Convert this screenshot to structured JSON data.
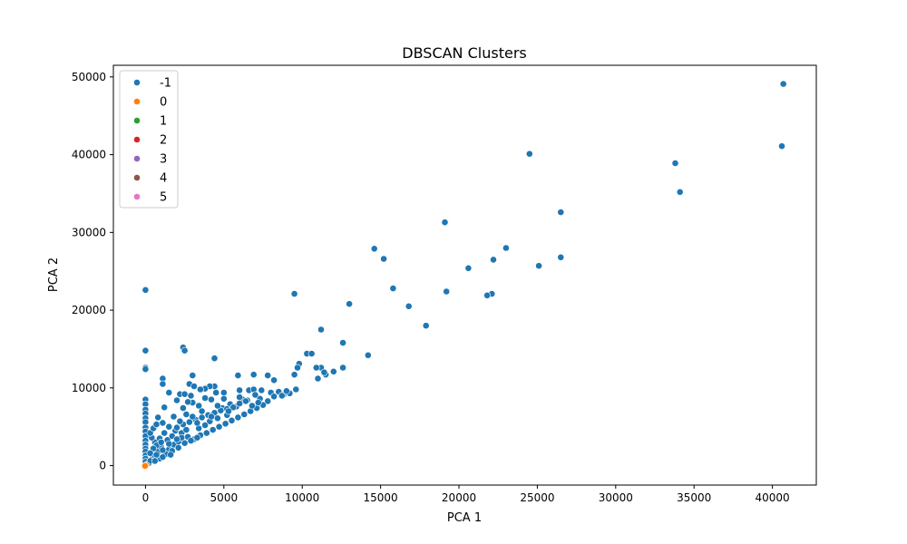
{
  "chart_data": {
    "type": "scatter",
    "title": "DBSCAN Clusters",
    "xlabel": "PCA 1",
    "ylabel": "PCA 2",
    "xlim": [
      -2050,
      42800
    ],
    "ylim": [
      -2500,
      51500
    ],
    "xticks": [
      0,
      5000,
      10000,
      15000,
      20000,
      25000,
      30000,
      35000,
      40000
    ],
    "yticks": [
      0,
      10000,
      20000,
      30000,
      40000,
      50000
    ],
    "grid": false,
    "legend_position": "top-left",
    "series": [
      {
        "name": "-1",
        "color": "#1f77b4",
        "points": [
          [
            40700,
            49100
          ],
          [
            40600,
            41100
          ],
          [
            24500,
            40100
          ],
          [
            33800,
            38900
          ],
          [
            34100,
            35200
          ],
          [
            26500,
            32600
          ],
          [
            19100,
            31300
          ],
          [
            14600,
            27900
          ],
          [
            23000,
            28000
          ],
          [
            15200,
            26600
          ],
          [
            26500,
            26800
          ],
          [
            22200,
            26500
          ],
          [
            25100,
            25700
          ],
          [
            20600,
            25400
          ],
          [
            19200,
            22400
          ],
          [
            22100,
            22100
          ],
          [
            21800,
            21900
          ],
          [
            9500,
            22100
          ],
          [
            13000,
            20800
          ],
          [
            16800,
            20500
          ],
          [
            17900,
            18000
          ],
          [
            11200,
            17500
          ],
          [
            12600,
            15800
          ],
          [
            15800,
            22800
          ],
          [
            0,
            22600
          ],
          [
            0,
            14800
          ],
          [
            2400,
            15200
          ],
          [
            2500,
            14800
          ],
          [
            4400,
            13800
          ],
          [
            14200,
            14200
          ],
          [
            10300,
            14400
          ],
          [
            10600,
            14400
          ],
          [
            12600,
            12600
          ],
          [
            9800,
            13100
          ],
          [
            12000,
            12100
          ],
          [
            11500,
            11700
          ],
          [
            11000,
            11200
          ],
          [
            11200,
            12600
          ],
          [
            9500,
            11700
          ],
          [
            7800,
            11600
          ],
          [
            6900,
            11700
          ],
          [
            5900,
            11600
          ],
          [
            3000,
            11600
          ],
          [
            1100,
            11200
          ],
          [
            0,
            12600
          ],
          [
            0,
            12400
          ],
          [
            8200,
            11000
          ],
          [
            9700,
            12600
          ],
          [
            10900,
            12600
          ],
          [
            11400,
            12000
          ],
          [
            4400,
            10200
          ],
          [
            4100,
            10200
          ],
          [
            3800,
            9900
          ],
          [
            2800,
            10500
          ],
          [
            3100,
            10200
          ],
          [
            1100,
            10500
          ],
          [
            1500,
            9400
          ],
          [
            2200,
            9200
          ],
          [
            2500,
            9200
          ],
          [
            2900,
            9000
          ],
          [
            3500,
            9800
          ],
          [
            4500,
            9400
          ],
          [
            5000,
            9400
          ],
          [
            6000,
            9700
          ],
          [
            6600,
            9700
          ],
          [
            6900,
            9800
          ],
          [
            7400,
            9700
          ],
          [
            8000,
            9400
          ],
          [
            8500,
            9500
          ],
          [
            9600,
            9800
          ],
          [
            9200,
            9300
          ],
          [
            8800,
            9100
          ],
          [
            7800,
            8300
          ],
          [
            7300,
            8600
          ],
          [
            7000,
            9100
          ],
          [
            6500,
            8400
          ],
          [
            6200,
            8500
          ],
          [
            5800,
            7600
          ],
          [
            5400,
            7900
          ],
          [
            4900,
            7400
          ],
          [
            4200,
            8500
          ],
          [
            3800,
            8700
          ],
          [
            3400,
            7700
          ],
          [
            3000,
            8100
          ],
          [
            2700,
            8200
          ],
          [
            2400,
            7400
          ],
          [
            2000,
            8400
          ],
          [
            1200,
            7500
          ],
          [
            800,
            6200
          ],
          [
            0,
            8500
          ],
          [
            0,
            7900
          ],
          [
            0,
            7200
          ],
          [
            0,
            6700
          ],
          [
            0,
            6100
          ],
          [
            0,
            5600
          ],
          [
            0,
            4900
          ],
          [
            0,
            4400
          ],
          [
            0,
            3800
          ],
          [
            0,
            3200
          ],
          [
            0,
            2700
          ],
          [
            0,
            2200
          ],
          [
            0,
            1800
          ],
          [
            0,
            1300
          ],
          [
            0,
            900
          ],
          [
            0,
            500
          ],
          [
            200,
            300
          ],
          [
            400,
            800
          ],
          [
            600,
            1300
          ],
          [
            800,
            1800
          ],
          [
            1000,
            2400
          ],
          [
            600,
            3000
          ],
          [
            400,
            3600
          ],
          [
            300,
            4200
          ],
          [
            500,
            4800
          ],
          [
            700,
            5300
          ],
          [
            1100,
            5500
          ],
          [
            1500,
            5000
          ],
          [
            1900,
            4500
          ],
          [
            2300,
            4200
          ],
          [
            2700,
            3700
          ],
          [
            3100,
            3400
          ],
          [
            3500,
            3900
          ],
          [
            3900,
            4200
          ],
          [
            4300,
            4600
          ],
          [
            4700,
            5000
          ],
          [
            5100,
            5400
          ],
          [
            5500,
            5800
          ],
          [
            5900,
            6200
          ],
          [
            6300,
            6600
          ],
          [
            6700,
            7000
          ],
          [
            7100,
            7400
          ],
          [
            7500,
            7800
          ],
          [
            1500,
            2100
          ],
          [
            1800,
            2700
          ],
          [
            2100,
            3100
          ],
          [
            2500,
            2900
          ],
          [
            2900,
            3200
          ],
          [
            3300,
            3600
          ],
          [
            1300,
            1500
          ],
          [
            1700,
            1900
          ],
          [
            2100,
            2300
          ],
          [
            900,
            900
          ],
          [
            1100,
            1100
          ],
          [
            1400,
            3300
          ],
          [
            1700,
            3800
          ],
          [
            2000,
            4900
          ],
          [
            2400,
            5300
          ],
          [
            2800,
            5600
          ],
          [
            3200,
            5900
          ],
          [
            3600,
            6200
          ],
          [
            4000,
            6500
          ],
          [
            4400,
            6800
          ],
          [
            4800,
            7100
          ],
          [
            5200,
            7300
          ],
          [
            5600,
            7500
          ],
          [
            6000,
            8000
          ],
          [
            6400,
            8300
          ],
          [
            3000,
            6300
          ],
          [
            3600,
            7000
          ],
          [
            4100,
            5700
          ],
          [
            4600,
            6100
          ],
          [
            5200,
            6500
          ],
          [
            1200,
            4200
          ],
          [
            900,
            3500
          ],
          [
            700,
            2600
          ],
          [
            1500,
            2800
          ],
          [
            2300,
            3600
          ],
          [
            2600,
            4600
          ],
          [
            3400,
            4800
          ],
          [
            3800,
            5200
          ],
          [
            2200,
            5700
          ],
          [
            1800,
            6300
          ],
          [
            500,
            2200
          ],
          [
            300,
            1600
          ],
          [
            1000,
            3000
          ],
          [
            2600,
            6600
          ],
          [
            4600,
            7700
          ],
          [
            5300,
            7000
          ],
          [
            6800,
            7700
          ],
          [
            7200,
            8100
          ],
          [
            8200,
            8900
          ],
          [
            8700,
            9000
          ],
          [
            9000,
            9600
          ],
          [
            6000,
            8800
          ],
          [
            5000,
            8600
          ],
          [
            4200,
            6300
          ],
          [
            3300,
            5500
          ],
          [
            2000,
            3400
          ],
          [
            1100,
            2000
          ],
          [
            700,
            1400
          ],
          [
            300,
            600
          ],
          [
            600,
            600
          ],
          [
            1600,
            1400
          ]
        ]
      },
      {
        "name": "0",
        "color": "#ff7f0e",
        "points": [
          [
            0,
            0
          ],
          [
            50,
            80
          ],
          [
            -30,
            -40
          ]
        ]
      },
      {
        "name": "1",
        "color": "#2ca02c",
        "points": []
      },
      {
        "name": "2",
        "color": "#d62728",
        "points": []
      },
      {
        "name": "3",
        "color": "#9467bd",
        "points": []
      },
      {
        "name": "4",
        "color": "#8c564b",
        "points": []
      },
      {
        "name": "5",
        "color": "#e377c2",
        "points": []
      }
    ]
  }
}
